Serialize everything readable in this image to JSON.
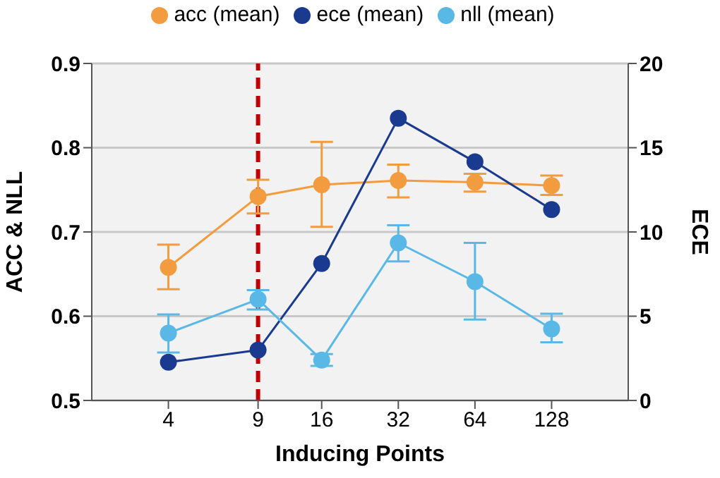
{
  "chart_data": {
    "type": "line",
    "xlabel": "Inducing Points",
    "ylabel": "ACC & NLL",
    "y2label": "ECE",
    "x": [
      4,
      9,
      16,
      32,
      64,
      128
    ],
    "log": "x",
    "xlim": [
      2,
      256
    ],
    "xticks": [
      4,
      9,
      16,
      32,
      64,
      128
    ],
    "ylim": [
      0.5,
      0.9
    ],
    "yticks": [
      0.5,
      0.6,
      0.7,
      0.8,
      0.9
    ],
    "y2lim": [
      0,
      20
    ],
    "y2ticks": [
      0,
      5,
      10,
      15,
      20
    ],
    "grid": "y",
    "legend": "top",
    "marker": "circle",
    "line_style": "solid",
    "series": [
      {
        "name": "acc (mean)",
        "color": "#f29c3f",
        "values": [
          0.658,
          0.742,
          0.756,
          0.761,
          0.759,
          0.755
        ],
        "errors": [
          [
            0.632,
            0.685
          ],
          [
            0.722,
            0.762
          ],
          [
            0.706,
            0.807
          ],
          [
            0.741,
            0.78
          ],
          [
            0.748,
            0.769
          ],
          [
            0.744,
            0.767
          ]
        ]
      },
      {
        "name": "ece (mean)",
        "color": "#1a3a8f",
        "axis": "y2",
        "values": [
          2.27,
          2.99,
          8.13,
          16.75,
          14.16,
          11.33
        ]
      },
      {
        "name": "nll (mean)",
        "color": "#5ab8e6",
        "values": [
          0.58,
          0.62,
          0.548,
          0.687,
          0.641,
          0.585
        ],
        "errors": [
          [
            0.557,
            0.602
          ],
          [
            0.608,
            0.631
          ],
          [
            0.541,
            0.555
          ],
          [
            0.665,
            0.708
          ],
          [
            0.596,
            0.687
          ],
          [
            0.569,
            0.603
          ]
        ]
      }
    ],
    "ref_lines": [
      {
        "axis": "x",
        "value": 9,
        "color": "#c00000",
        "line_style": "dashed"
      }
    ]
  }
}
